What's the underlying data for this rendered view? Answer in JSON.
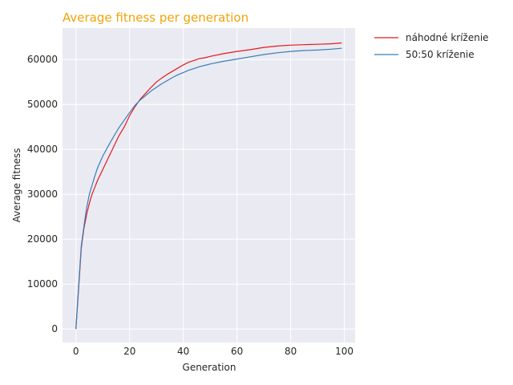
{
  "chart_data": {
    "type": "line",
    "title": "Average fitness per generation",
    "title_color": "#f0a30a",
    "xlabel": "Generation",
    "ylabel": "Average fitness",
    "xlim": [
      -5,
      104
    ],
    "ylim": [
      -3000,
      67000
    ],
    "xticks": [
      0,
      20,
      40,
      60,
      80,
      100
    ],
    "yticks": [
      0,
      10000,
      20000,
      30000,
      40000,
      50000,
      60000
    ],
    "grid": true,
    "background": "#eaeaf2",
    "legend_position": "outside-right-top",
    "series": [
      {
        "name": "náhodné kríženie",
        "color": "#e41a1c",
        "x": [
          0,
          1,
          2,
          3,
          4,
          5,
          6,
          7,
          8,
          10,
          12,
          14,
          16,
          18,
          20,
          22,
          24,
          26,
          28,
          30,
          32,
          34,
          36,
          38,
          40,
          42,
          44,
          46,
          48,
          50,
          55,
          60,
          65,
          70,
          75,
          80,
          85,
          90,
          95,
          99
        ],
        "values": [
          0,
          9000,
          18000,
          22500,
          25500,
          28000,
          30000,
          31500,
          33000,
          35500,
          38000,
          40500,
          43000,
          45000,
          47500,
          49500,
          51200,
          52500,
          53800,
          55000,
          55900,
          56700,
          57400,
          58100,
          58800,
          59400,
          59800,
          60200,
          60400,
          60700,
          61300,
          61800,
          62200,
          62700,
          63000,
          63200,
          63300,
          63400,
          63500,
          63700
        ]
      },
      {
        "name": "50:50 kríženie",
        "color": "#377eb8",
        "x": [
          0,
          1,
          2,
          3,
          4,
          5,
          6,
          7,
          8,
          10,
          12,
          14,
          16,
          18,
          20,
          22,
          24,
          26,
          28,
          30,
          32,
          34,
          36,
          38,
          40,
          42,
          44,
          46,
          48,
          50,
          55,
          60,
          65,
          70,
          75,
          80,
          85,
          90,
          95,
          99
        ],
        "values": [
          0,
          9500,
          18500,
          23000,
          27000,
          30000,
          32000,
          34000,
          35800,
          38500,
          40700,
          42800,
          44800,
          46500,
          48200,
          49800,
          51000,
          52000,
          53000,
          53800,
          54600,
          55300,
          56000,
          56600,
          57100,
          57600,
          58000,
          58400,
          58700,
          59000,
          59600,
          60100,
          60600,
          61100,
          61500,
          61800,
          62000,
          62100,
          62300,
          62500
        ]
      }
    ]
  }
}
